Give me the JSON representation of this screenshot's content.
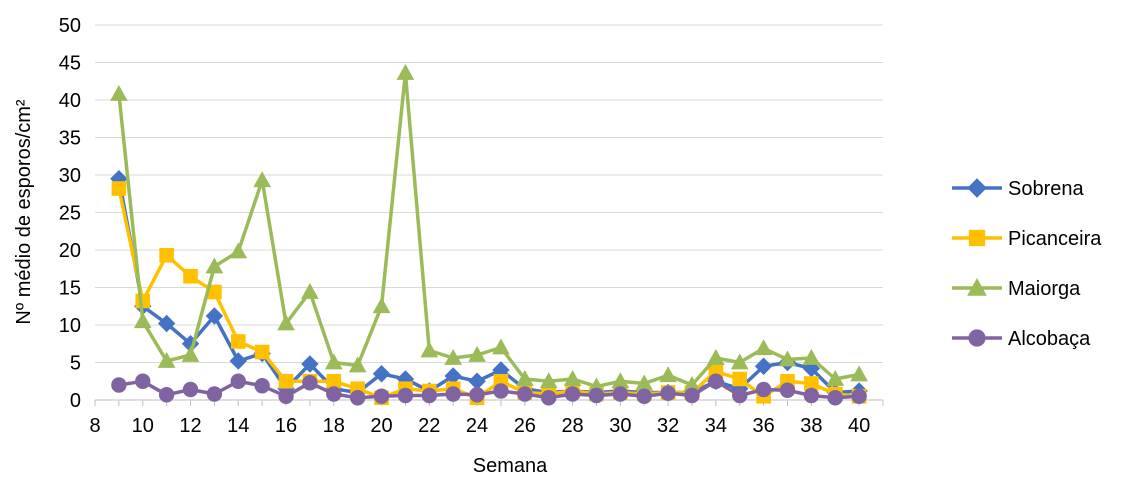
{
  "chart_data": {
    "type": "line",
    "xlabel": "Semana",
    "ylabel": "Nº médio de esporos/cm²",
    "xlim": [
      8,
      41
    ],
    "ylim": [
      0,
      50
    ],
    "x_ticks": [
      "8",
      "10",
      "12",
      "14",
      "16",
      "18",
      "20",
      "22",
      "24",
      "26",
      "28",
      "30",
      "32",
      "34",
      "36",
      "38",
      "40"
    ],
    "y_ticks": [
      "0",
      "5",
      "10",
      "15",
      "20",
      "25",
      "30",
      "35",
      "40",
      "45",
      "50"
    ],
    "grid": "horizontal",
    "legend_position": "right",
    "x": [
      9,
      10,
      11,
      12,
      13,
      14,
      15,
      16,
      17,
      18,
      19,
      20,
      21,
      22,
      23,
      24,
      25,
      26,
      27,
      28,
      29,
      30,
      31,
      32,
      33,
      34,
      35,
      36,
      37,
      38,
      39,
      40
    ],
    "series": [
      {
        "name": "Sobrena",
        "color": "#4472C4",
        "marker": "diamond",
        "values": [
          29.5,
          12.5,
          10.2,
          7.5,
          11.2,
          5.2,
          6.2,
          1.5,
          4.8,
          1.5,
          1.0,
          3.5,
          2.8,
          1.2,
          3.2,
          2.5,
          4.0,
          1.5,
          1.0,
          1.2,
          1.0,
          1.2,
          1.0,
          1.0,
          1.0,
          2.5,
          1.5,
          4.5,
          5.0,
          4.2,
          1.0,
          1.2
        ]
      },
      {
        "name": "Picanceira",
        "color": "#FFC000",
        "marker": "square",
        "values": [
          28.2,
          13.2,
          19.3,
          16.5,
          14.4,
          7.8,
          6.4,
          2.5,
          2.5,
          2.5,
          1.5,
          0.3,
          1.5,
          1.2,
          1.5,
          0.3,
          2.5,
          1.0,
          0.8,
          1.2,
          0.8,
          1.0,
          0.8,
          1.0,
          1.0,
          3.8,
          2.8,
          0.5,
          2.5,
          2.2,
          0.8,
          0.5
        ]
      },
      {
        "name": "Maiorga",
        "color": "#9BBB59",
        "marker": "triangle",
        "values": [
          40.8,
          10.5,
          5.2,
          6.0,
          17.8,
          19.8,
          29.3,
          10.2,
          14.4,
          5.0,
          4.6,
          12.5,
          43.6,
          6.6,
          5.6,
          6.0,
          7.0,
          2.8,
          2.5,
          2.8,
          1.8,
          2.5,
          2.2,
          3.3,
          2.0,
          5.6,
          5.0,
          6.9,
          5.4,
          5.6,
          2.8,
          3.4
        ]
      },
      {
        "name": "Alcobaça",
        "color": "#8064A2",
        "marker": "circle",
        "values": [
          2.0,
          2.5,
          0.7,
          1.4,
          0.8,
          2.5,
          1.9,
          0.5,
          2.3,
          0.8,
          0.3,
          0.5,
          0.6,
          0.6,
          0.8,
          0.7,
          1.2,
          0.8,
          0.3,
          0.8,
          0.6,
          0.8,
          0.5,
          0.9,
          0.6,
          2.5,
          0.6,
          1.4,
          1.3,
          0.6,
          0.3,
          0.5
        ]
      }
    ]
  }
}
